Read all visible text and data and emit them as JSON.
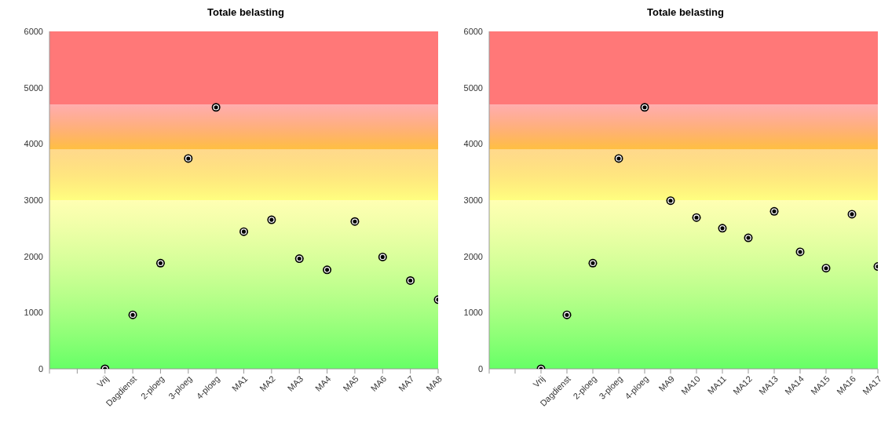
{
  "chart_data": [
    {
      "type": "scatter",
      "title": "Totale belasting",
      "categories": [
        null,
        null,
        "Vrij",
        "Dagdienst",
        "2-ploeg",
        "3-ploeg",
        "4-ploeg",
        "MA1",
        "MA2",
        "MA3",
        "MA4",
        "MA5",
        "MA6",
        "MA7",
        "MA8"
      ],
      "values": [
        null,
        null,
        0,
        960,
        1880,
        3740,
        4650,
        2440,
        2650,
        1960,
        1760,
        2620,
        1990,
        1570,
        1230
      ],
      "color": "#000000",
      "marker": "circle",
      "ylim": [
        0,
        6000
      ],
      "yticks": [
        0,
        1000,
        2000,
        3000,
        4000,
        5000,
        6000
      ],
      "bands": [
        {
          "axis": "y",
          "from": 0,
          "to": 3000,
          "color": "#66ff66"
        },
        {
          "axis": "y",
          "from": 3000,
          "to": 3900,
          "color": "#ffff80"
        },
        {
          "axis": "y",
          "from": 3900,
          "to": 4700,
          "color": "#ffc040"
        },
        {
          "axis": "y",
          "from": 4700,
          "to": 6000,
          "color": "#ff7878"
        }
      ]
    },
    {
      "type": "scatter",
      "title": "Totale belasting",
      "categories": [
        null,
        null,
        "Vrij",
        "Dagdienst",
        "2-ploeg",
        "3-ploeg",
        "4-ploeg",
        "MA9",
        "MA10",
        "MA11",
        "MA12",
        "MA13",
        "MA14",
        "MA15",
        "MA16",
        "MA17"
      ],
      "values": [
        null,
        null,
        0,
        960,
        1880,
        3740,
        4650,
        2990,
        2690,
        2500,
        2330,
        2800,
        2080,
        1790,
        2750,
        1820
      ],
      "color": "#000000",
      "marker": "circle",
      "ylim": [
        0,
        6000
      ],
      "yticks": [
        0,
        1000,
        2000,
        3000,
        4000,
        5000,
        6000
      ],
      "bands": [
        {
          "axis": "y",
          "from": 0,
          "to": 3000,
          "color": "#66ff66"
        },
        {
          "axis": "y",
          "from": 3000,
          "to": 3900,
          "color": "#ffff80"
        },
        {
          "axis": "y",
          "from": 3900,
          "to": 4700,
          "color": "#ffc040"
        },
        {
          "axis": "y",
          "from": 4700,
          "to": 6000,
          "color": "#ff7878"
        }
      ]
    }
  ]
}
